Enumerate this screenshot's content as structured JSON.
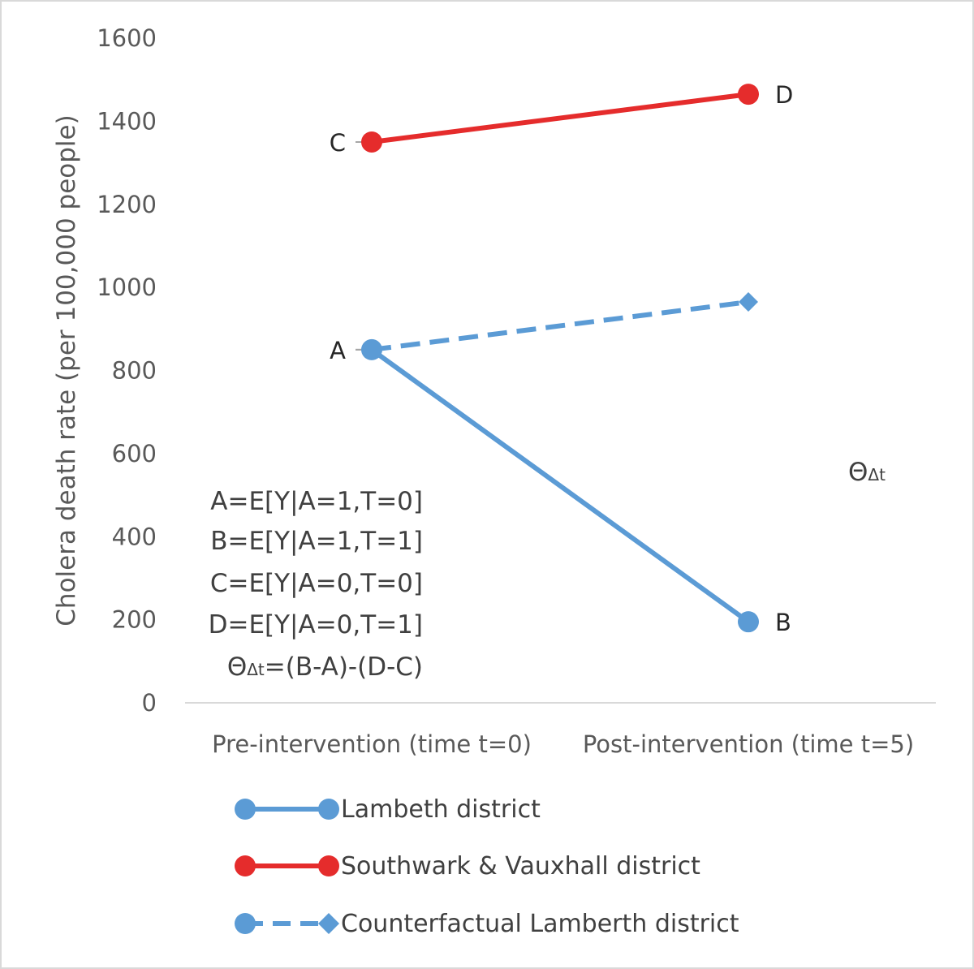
{
  "chart_data": {
    "type": "line",
    "categories": [
      "Pre-intervention (time t=0)",
      "Post-intervention (time t=5)"
    ],
    "ylabel": "Cholera death rate (per 100,000 people)",
    "ylim": [
      0,
      1600
    ],
    "yticks": [
      0,
      200,
      400,
      600,
      800,
      1000,
      1200,
      1400,
      1600
    ],
    "grid": false,
    "legend_position": "bottom",
    "series": [
      {
        "name": "Lambeth district",
        "values": [
          850,
          195
        ],
        "color": "#5b9bd5",
        "style": "solid",
        "marker": "circle",
        "marker_end": "circle"
      },
      {
        "name": "Southwark & Vauxhall district",
        "values": [
          1350,
          1465
        ],
        "color": "#e52c2c",
        "style": "solid",
        "marker": "circle",
        "marker_end": "circle"
      },
      {
        "name": "Counterfactual Lamberth district",
        "values": [
          850,
          965
        ],
        "color": "#5b9bd5",
        "style": "dashed",
        "marker": "circle",
        "marker_end": "diamond"
      }
    ],
    "point_labels": [
      {
        "text": "A",
        "series": 0,
        "index": 0,
        "side": "left"
      },
      {
        "text": "B",
        "series": 0,
        "index": 1,
        "side": "right"
      },
      {
        "text": "C",
        "series": 1,
        "index": 0,
        "side": "left"
      },
      {
        "text": "D",
        "series": 1,
        "index": 1,
        "side": "right"
      }
    ],
    "theta_label": {
      "symbol": "Θ",
      "subscript": "Δt"
    },
    "formulas": [
      {
        "text": "A=E[Y|A=1,T=0]"
      },
      {
        "text": "B=E[Y|A=1,T=1]"
      },
      {
        "text": "C=E[Y|A=0,T=0]"
      },
      {
        "text": "D=E[Y|A=0,T=1]"
      },
      {
        "symbol": "Θ",
        "subscript": "Δt",
        "text": "=(B-A)-(D-C)"
      }
    ]
  }
}
